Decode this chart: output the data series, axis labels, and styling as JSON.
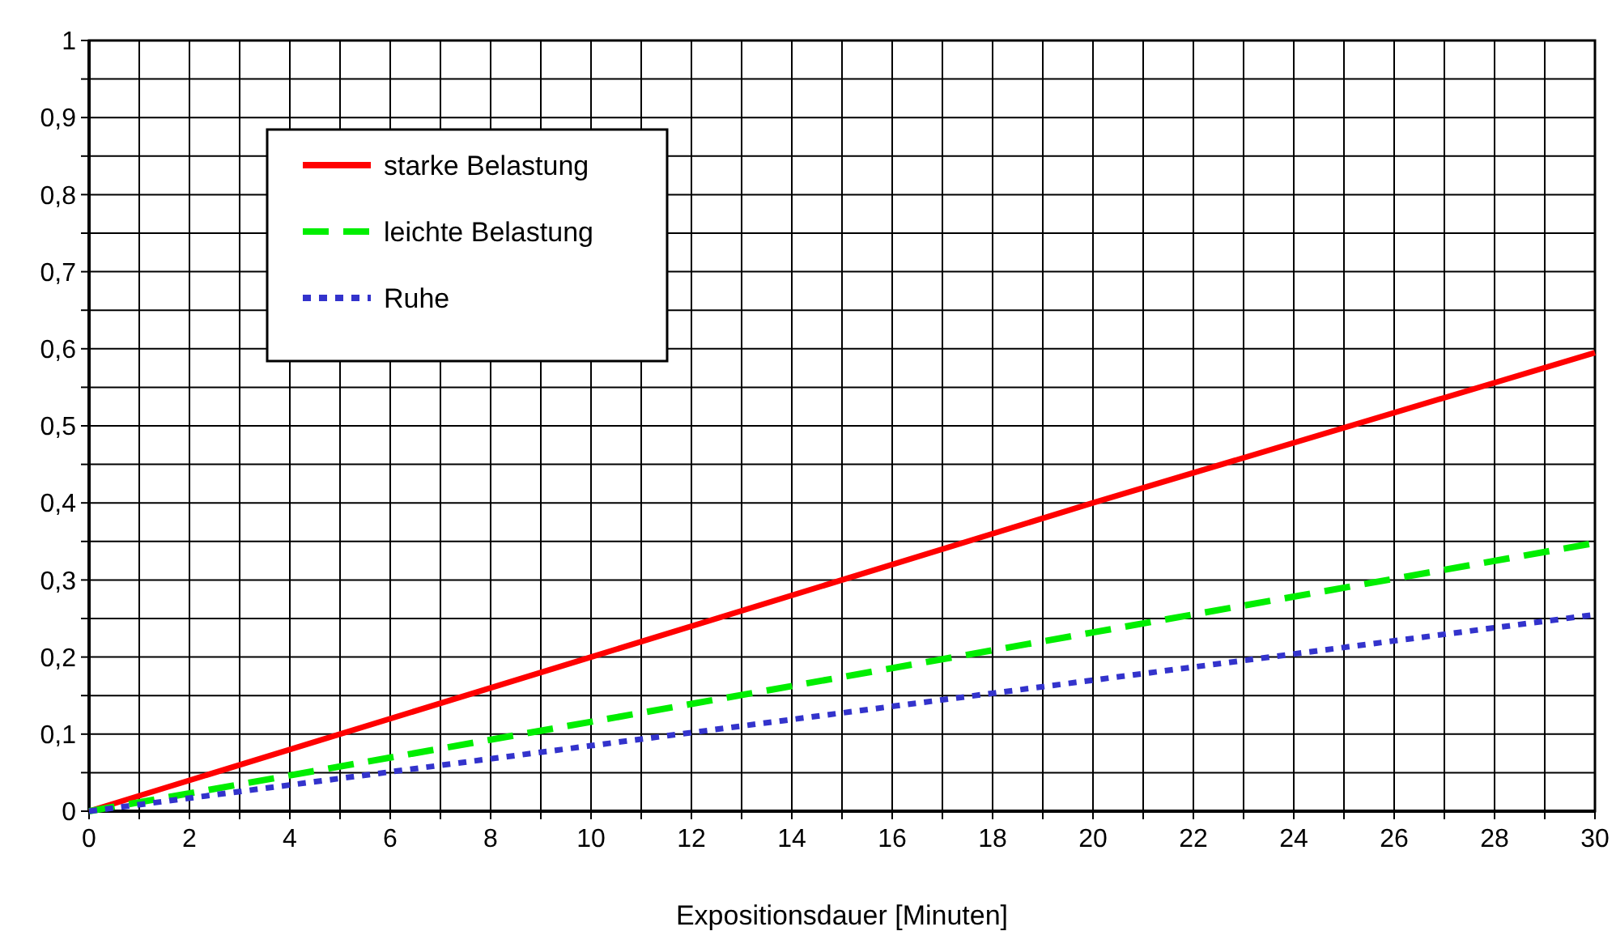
{
  "chart_data": {
    "type": "line",
    "xlabel": "Expositionsdauer [Minuten]",
    "x": [
      0,
      10,
      20,
      30
    ],
    "series": [
      {
        "name": "starke Belastung",
        "color": "#ff0000",
        "line_style": "solid",
        "values": [
          0,
          0.2,
          0.4,
          0.595
        ]
      },
      {
        "name": "leichte Belastung",
        "color": "#00ee00",
        "line_style": "dashed",
        "values": [
          0,
          0.116,
          0.232,
          0.348
        ]
      },
      {
        "name": "Ruhe",
        "color": "#3333cc",
        "line_style": "dotted",
        "values": [
          0,
          0.085,
          0.17,
          0.255
        ]
      }
    ],
    "xlim": [
      0,
      30
    ],
    "xticks": [
      0,
      {
        "value": 1,
        "label": null
      },
      2,
      {
        "value": 3,
        "label": null
      },
      4,
      {
        "value": 5,
        "label": null
      },
      6,
      {
        "value": 7,
        "label": null
      },
      8,
      {
        "value": 9,
        "label": null
      },
      10,
      {
        "value": 11,
        "label": null
      },
      12,
      {
        "value": 13,
        "label": null
      },
      14,
      {
        "value": 15,
        "label": null
      },
      16,
      {
        "value": 17,
        "label": null
      },
      18,
      {
        "value": 19,
        "label": null
      },
      20,
      {
        "value": 21,
        "label": null
      },
      22,
      {
        "value": 23,
        "label": null
      },
      24,
      {
        "value": 25,
        "label": null
      },
      26,
      {
        "value": 27,
        "label": null
      },
      28,
      {
        "value": 29,
        "label": null
      },
      30
    ],
    "ylim": [
      0,
      1
    ],
    "yticks": [
      {
        "value": 0,
        "label": "0"
      },
      {
        "value": 0.05,
        "label": null
      },
      {
        "value": 0.1,
        "label": "0,1"
      },
      {
        "value": 0.15,
        "label": null
      },
      {
        "value": 0.2,
        "label": "0,2"
      },
      {
        "value": 0.25,
        "label": null
      },
      {
        "value": 0.3,
        "label": "0,3"
      },
      {
        "value": 0.35,
        "label": null
      },
      {
        "value": 0.4,
        "label": "0,4"
      },
      {
        "value": 0.45,
        "label": null
      },
      {
        "value": 0.5,
        "label": "0,5"
      },
      {
        "value": 0.55,
        "label": null
      },
      {
        "value": 0.6,
        "label": "0,6"
      },
      {
        "value": 0.65,
        "label": null
      },
      {
        "value": 0.7,
        "label": "0,7"
      },
      {
        "value": 0.75,
        "label": null
      },
      {
        "value": 0.8,
        "label": "0,8"
      },
      {
        "value": 0.85,
        "label": null
      },
      {
        "value": 0.9,
        "label": "0,9"
      },
      {
        "value": 0.95,
        "label": null
      },
      {
        "value": 1,
        "label": "1"
      }
    ],
    "grid": true,
    "legend": "top left"
  }
}
